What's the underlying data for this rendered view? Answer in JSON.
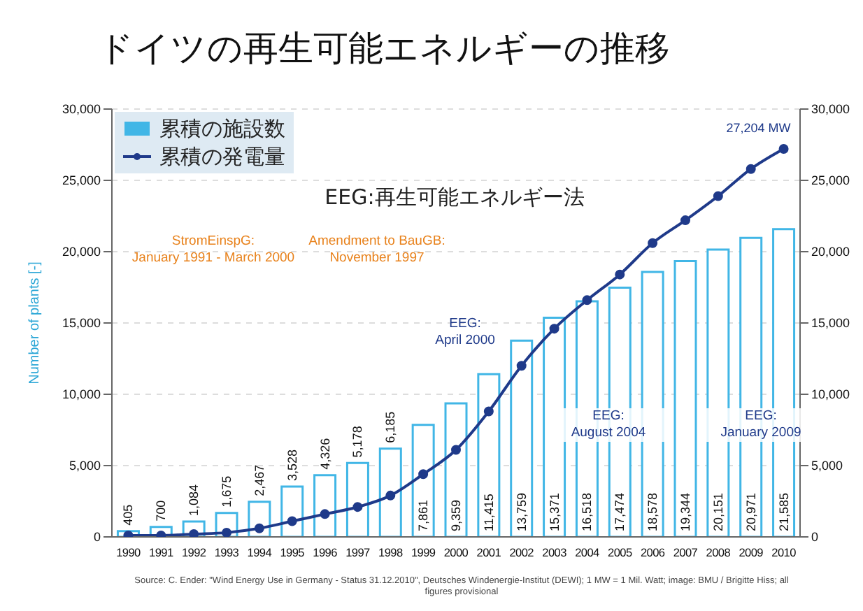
{
  "chart_data": {
    "type": "bar",
    "title": "ドイツの再生可能エネルギーの推移",
    "ylabel": "Number of plants [-]",
    "categories": [
      "1990",
      "1991",
      "1992",
      "1993",
      "1994",
      "1995",
      "1996",
      "1997",
      "1998",
      "1999",
      "2000",
      "2001",
      "2002",
      "2003",
      "2004",
      "2005",
      "2006",
      "2007",
      "2008",
      "2009",
      "2010"
    ],
    "series": [
      {
        "name": "累積の施設数",
        "color": "#41b6e6",
        "values": [
          405,
          700,
          1084,
          1675,
          2467,
          3528,
          4326,
          5178,
          6185,
          7861,
          9359,
          11415,
          13759,
          15371,
          16518,
          17474,
          18578,
          19344,
          20151,
          20971,
          21585
        ],
        "value_labels": [
          "405",
          "700",
          "1,084",
          "1,675",
          "2,467",
          "3,528",
          "4,326",
          "5,178",
          "6,185",
          "7,861",
          "9,359",
          "11,415",
          "13,759",
          "15,371",
          "16,518",
          "17,474",
          "18,578",
          "19,344",
          "20,151",
          "20,971",
          "21,585"
        ]
      },
      {
        "name": "累積の発電量",
        "type": "line",
        "axis": "y2",
        "color": "#1f3a8a",
        "values": [
          100,
          100,
          200,
          300,
          600,
          1100,
          1600,
          2100,
          2900,
          4400,
          6100,
          8800,
          12000,
          14600,
          16600,
          18400,
          20600,
          22200,
          23900,
          25800,
          27204
        ]
      }
    ],
    "ylim": [
      0,
      30000
    ],
    "yticks": [
      {
        "value": 0,
        "label": "0"
      },
      {
        "value": 5000,
        "label": "5,000"
      },
      {
        "value": 10000,
        "label": "10,000"
      },
      {
        "value": 15000,
        "label": "15,000"
      },
      {
        "value": 20000,
        "label": "20,000"
      },
      {
        "value": 25000,
        "label": "25,000"
      },
      {
        "value": 30000,
        "label": "30,000"
      }
    ],
    "y2lim": [
      0,
      30000
    ],
    "y2ticks": [
      {
        "value": 0,
        "label": "0"
      },
      {
        "value": 5000,
        "label": "5,000"
      },
      {
        "value": 10000,
        "label": "10,000"
      },
      {
        "value": 15000,
        "label": "15,000"
      },
      {
        "value": 20000,
        "label": "20,000"
      },
      {
        "value": 25000,
        "label": "25,000"
      },
      {
        "value": 30000,
        "label": "30,000"
      }
    ],
    "grid": "y",
    "legend": "top left",
    "marker": "circle",
    "line_style": "solid",
    "annotations": [
      "EEG:再生可能エネルギー法",
      "StromEinspG: January 1991 - March 2000",
      "Amendment to BauGB: November 1997",
      "EEG: April 2000",
      "EEG: August 2004",
      "EEG: January 2009",
      {
        "text": "27,204 MW",
        "x": "2010",
        "y": 27204
      },
      "Source: C. Ender: \"Wind Energy Use in Germany - Status 31.12.2010\", Deutsches Windenergie-Institut (DEWI); 1 MW = 1 Mil. Watt; image: BMU / Brigitte Hiss; all figures provisional"
    ]
  }
}
